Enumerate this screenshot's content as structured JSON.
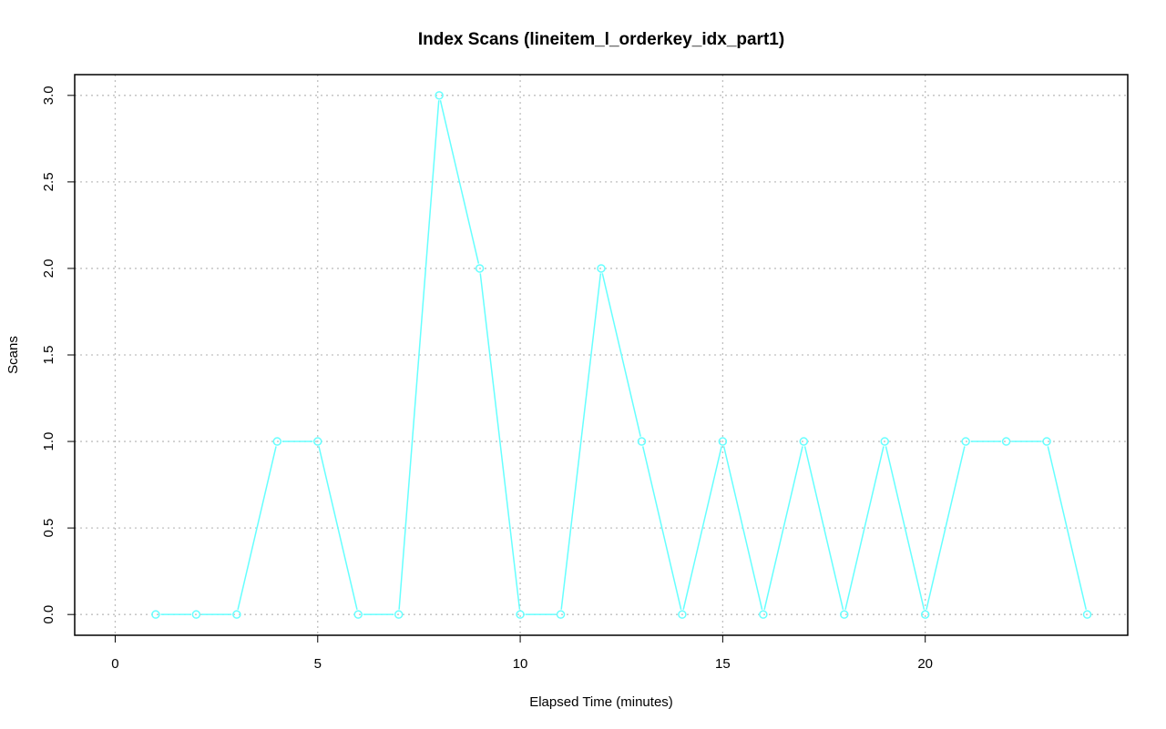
{
  "chart_data": {
    "type": "line",
    "title": "Index Scans (lineitem_l_orderkey_idx_part1)",
    "xlabel": "Elapsed Time (minutes)",
    "ylabel": "Scans",
    "xlim": [
      -1,
      25
    ],
    "ylim": [
      -0.12,
      3.12
    ],
    "x_ticks": [
      0,
      5,
      10,
      15,
      20
    ],
    "x_tick_labels": [
      "0",
      "5",
      "10",
      "15",
      "20"
    ],
    "y_ticks": [
      0,
      0.5,
      1,
      1.5,
      2,
      2.5,
      3
    ],
    "y_tick_labels": [
      "0.0",
      "0.5",
      "1.0",
      "1.5",
      "2.0",
      "2.5",
      "3.0"
    ],
    "grid": true,
    "legend": "none",
    "series": [
      {
        "color": "#66ffff",
        "marker": "open-circle",
        "x": [
          1,
          2,
          3,
          4,
          5,
          6,
          7,
          8,
          9,
          10,
          11,
          12,
          13,
          14,
          15,
          16,
          17,
          18,
          19,
          20,
          21,
          22,
          23,
          24
        ],
        "values": [
          0,
          0,
          0,
          1,
          1,
          0,
          0,
          3,
          2,
          0,
          0,
          2,
          1,
          0,
          1,
          0,
          1,
          0,
          1,
          0,
          1,
          1,
          1,
          0
        ]
      }
    ]
  }
}
